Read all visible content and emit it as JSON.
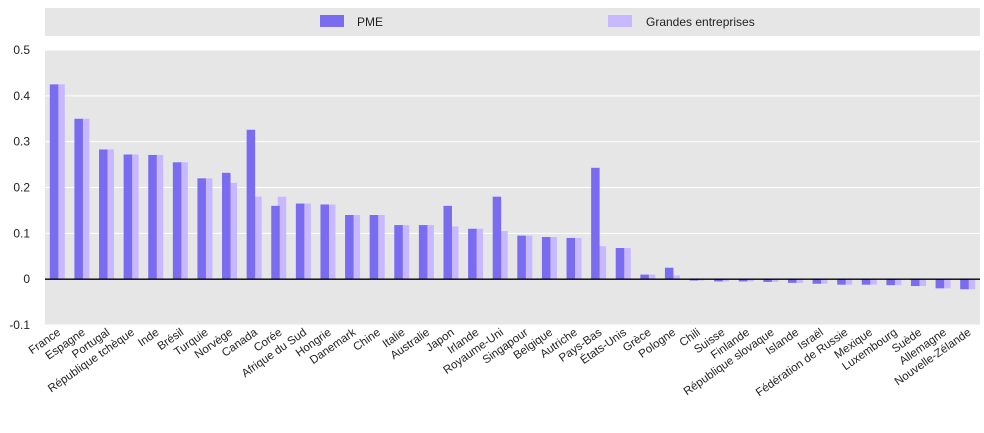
{
  "colors": {
    "pme": "#7a6cf0",
    "grandes": "#c8b8ff",
    "legend_bg": "#e6e6e6",
    "grid": "#ffffff",
    "plot_bg": "#e6e6e6",
    "axis": "#000000"
  },
  "chart_data": {
    "type": "bar",
    "legend": {
      "position": "top",
      "entries": [
        "PME",
        "Grandes entreprises"
      ]
    },
    "grid": true,
    "ylim": [
      -0.1,
      0.5
    ],
    "yticks": [
      -0.1,
      0,
      0.1,
      0.2,
      0.3,
      0.4,
      0.5
    ],
    "categories": [
      "France",
      "Espagne",
      "Portugal",
      "République tchèque",
      "Inde",
      "Brésil",
      "Turquie",
      "Norvège",
      "Canada",
      "Corée",
      "Afrique du Sud",
      "Hongrie",
      "Danemark",
      "Chine",
      "Italie",
      "Australie",
      "Japon",
      "Irlande",
      "Royaume-Uni",
      "Singapour",
      "Belgique",
      "Autriche",
      "Pays-Bas",
      "États-Unis",
      "Grèce",
      "Pologne",
      "Chili",
      "Suisse",
      "Finlande",
      "République slovaque",
      "Islande",
      "Israël",
      "Fédération de Russie",
      "Mexique",
      "Luxembourg",
      "Suède",
      "Allemagne",
      "Nouvelle-Zélande"
    ],
    "series": [
      {
        "name": "PME",
        "values": [
          0.425,
          0.35,
          0.283,
          0.272,
          0.271,
          0.255,
          0.22,
          0.232,
          0.326,
          0.16,
          0.165,
          0.163,
          0.14,
          0.14,
          0.118,
          0.118,
          0.16,
          0.11,
          0.18,
          0.095,
          0.092,
          0.09,
          0.243,
          0.068,
          0.01,
          0.025,
          -0.003,
          -0.005,
          -0.005,
          -0.006,
          -0.008,
          -0.01,
          -0.012,
          -0.012,
          -0.013,
          -0.015,
          -0.02,
          -0.022
        ]
      },
      {
        "name": "Grandes entreprises",
        "values": [
          0.425,
          0.35,
          0.283,
          0.272,
          0.271,
          0.255,
          0.22,
          0.21,
          0.18,
          0.18,
          0.165,
          0.163,
          0.14,
          0.14,
          0.118,
          0.118,
          0.115,
          0.11,
          0.105,
          0.095,
          0.092,
          0.09,
          0.072,
          0.068,
          0.01,
          0.008,
          -0.003,
          -0.005,
          -0.005,
          -0.006,
          -0.008,
          -0.01,
          -0.012,
          -0.012,
          -0.013,
          -0.015,
          -0.02,
          -0.022
        ]
      }
    ]
  }
}
